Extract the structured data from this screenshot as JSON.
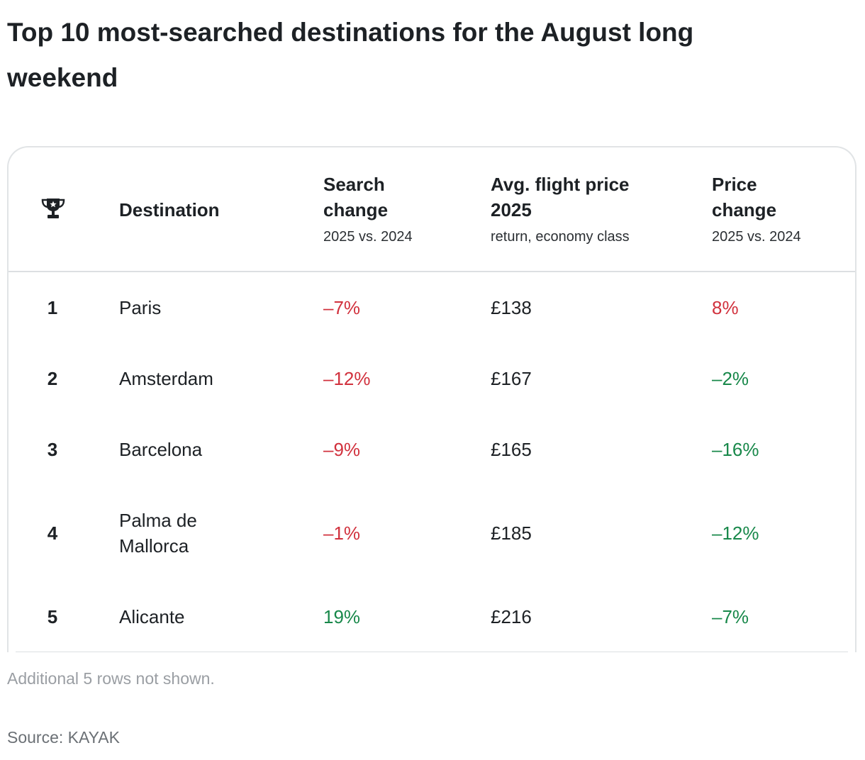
{
  "title": "Top 10 most-searched destinations for the August long weekend",
  "header": {
    "destination": "Destination",
    "search_change": "Search change",
    "search_change_sub": "2025 vs. 2024",
    "avg_price": "Avg. flight price 2025",
    "avg_price_sub": "return, economy class",
    "price_change": "Price change",
    "price_change_sub": "2025 vs. 2024",
    "rank_icon": "trophy-icon"
  },
  "colors": {
    "negative": "#d1313d",
    "positive": "#18884a"
  },
  "chart_data": {
    "type": "table",
    "title": "Top 10 most-searched destinations for the August long weekend",
    "columns": [
      "Rank",
      "Destination",
      "Search change 2025 vs. 2024",
      "Avg. flight price 2025 (return, economy class)",
      "Price change 2025 vs. 2024"
    ],
    "rows": [
      {
        "rank": "1",
        "destination": "Paris",
        "search_change": "–7%",
        "search_dir": "neg",
        "price": "£138",
        "price_change": "8%",
        "price_dir": "neg"
      },
      {
        "rank": "2",
        "destination": "Amsterdam",
        "search_change": "–12%",
        "search_dir": "neg",
        "price": "£167",
        "price_change": "–2%",
        "price_dir": "pos"
      },
      {
        "rank": "3",
        "destination": "Barcelona",
        "search_change": "–9%",
        "search_dir": "neg",
        "price": "£165",
        "price_change": "–16%",
        "price_dir": "pos"
      },
      {
        "rank": "4",
        "destination": "Palma de Mallorca",
        "search_change": "–1%",
        "search_dir": "neg",
        "price": "£185",
        "price_change": "–12%",
        "price_dir": "pos"
      },
      {
        "rank": "5",
        "destination": "Alicante",
        "search_change": "19%",
        "search_dir": "pos",
        "price": "£216",
        "price_change": "–7%",
        "price_dir": "pos"
      }
    ]
  },
  "footer": {
    "note": "Additional 5 rows not shown.",
    "source": "Source: KAYAK"
  }
}
